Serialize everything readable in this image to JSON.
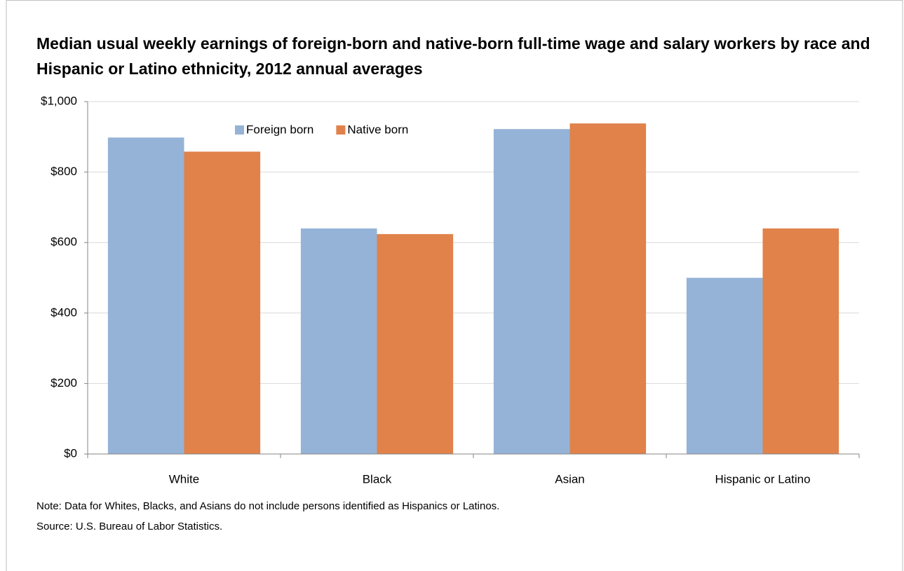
{
  "chart_data": {
    "type": "bar",
    "title": "Median usual weekly earnings of foreign-born and native-born full-time wage and salary workers by race and Hispanic or Latino ethnicity, 2012 annual averages",
    "categories": [
      "White",
      "Black",
      "Asian",
      "Hispanic or Latino"
    ],
    "series": [
      {
        "name": "Foreign born",
        "color": "#95b3d7",
        "values": [
          898,
          640,
          922,
          500
        ]
      },
      {
        "name": "Native born",
        "color": "#e0824a",
        "values": [
          858,
          624,
          938,
          640
        ]
      }
    ],
    "ylim": [
      0,
      1000
    ],
    "yticks": [
      {
        "value": 0,
        "label": "$0"
      },
      {
        "value": 200,
        "label": "$200"
      },
      {
        "value": 400,
        "label": "$400"
      },
      {
        "value": 600,
        "label": "$600"
      },
      {
        "value": 800,
        "label": "$800"
      },
      {
        "value": 1000,
        "label": "$1,000"
      }
    ],
    "grid": true,
    "legend": "top",
    "note": "Note: Data for Whites, Blacks, and Asians do not include persons  identified as Hispanics or Latinos.",
    "source": "Source: U.S. Bureau of Labor Statistics."
  }
}
